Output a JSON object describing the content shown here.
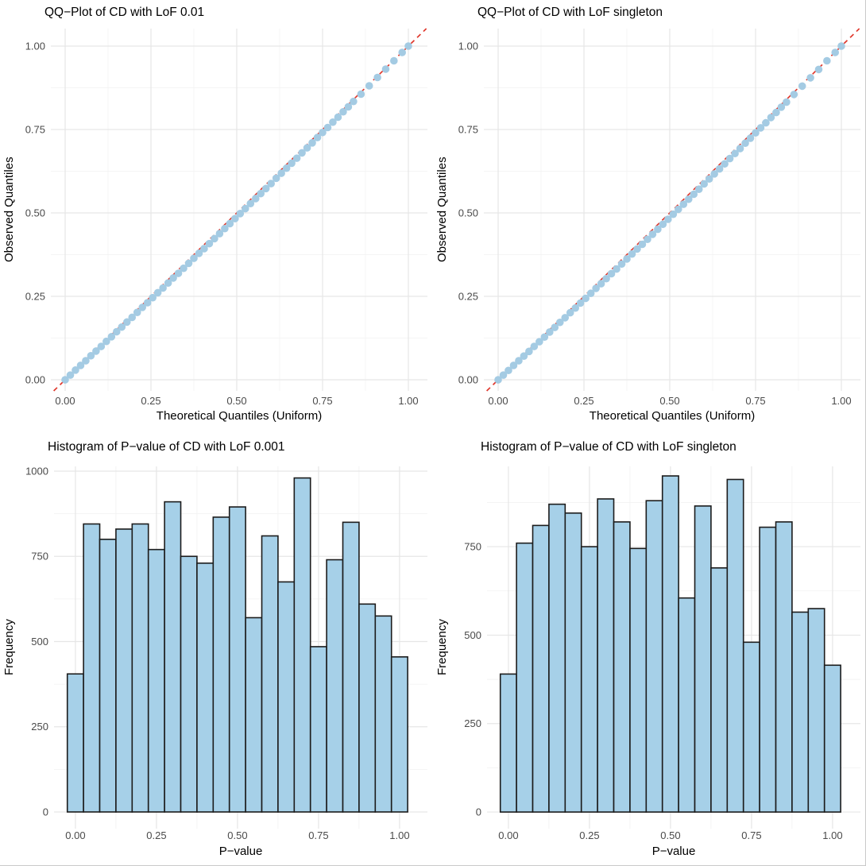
{
  "figure": {
    "background": "#ffffff",
    "edge_border": "#c9c9c9"
  },
  "palette": {
    "point_fill": "#A4CBE3",
    "bar_fill": "#A6D0E8",
    "bar_stroke": "#1C1C1C",
    "ref_line": "#E0372C",
    "grid_major": "#E6E6E6",
    "grid_minor": "#F2F2F2",
    "tick_text": "#4A4A4A",
    "title_text": "#000000"
  },
  "chart_data": [
    {
      "type": "scatter",
      "title": "QQ−Plot of CD with LoF 0.01",
      "xlabel": "Theoretical Quantiles (Uniform)",
      "ylabel": "Observed Quantiles",
      "grid": true,
      "legend": "none",
      "xlim": [
        -0.0417,
        1.0556
      ],
      "ylim": [
        -0.0333,
        1.0524
      ],
      "xtick_values": [
        0,
        0.25,
        0.5,
        0.75,
        1
      ],
      "xticks": [
        "0.00",
        "0.25",
        "0.50",
        "0.75",
        "1.00"
      ],
      "ytick_values": [
        0,
        0.25,
        0.5,
        0.75,
        1
      ],
      "yticks": [
        "0.00",
        "0.25",
        "0.50",
        "0.75",
        "1.00"
      ],
      "reference_line": {
        "type": "identity",
        "style": "dashed"
      },
      "points": [
        [
          0.0,
          0.0
        ],
        [
          0.015,
          0.014
        ],
        [
          0.03,
          0.029
        ],
        [
          0.045,
          0.043
        ],
        [
          0.06,
          0.057
        ],
        [
          0.075,
          0.072
        ],
        [
          0.09,
          0.086
        ],
        [
          0.105,
          0.1
        ],
        [
          0.12,
          0.115
        ],
        [
          0.135,
          0.129
        ],
        [
          0.15,
          0.144
        ],
        [
          0.165,
          0.158
        ],
        [
          0.18,
          0.173
        ],
        [
          0.195,
          0.187
        ],
        [
          0.21,
          0.202
        ],
        [
          0.225,
          0.217
        ],
        [
          0.24,
          0.231
        ],
        [
          0.255,
          0.246
        ],
        [
          0.27,
          0.261
        ],
        [
          0.285,
          0.275
        ],
        [
          0.3,
          0.29
        ],
        [
          0.315,
          0.305
        ],
        [
          0.33,
          0.319
        ],
        [
          0.345,
          0.334
        ],
        [
          0.36,
          0.349
        ],
        [
          0.375,
          0.364
        ],
        [
          0.39,
          0.379
        ],
        [
          0.405,
          0.393
        ],
        [
          0.42,
          0.408
        ],
        [
          0.435,
          0.423
        ],
        [
          0.45,
          0.438
        ],
        [
          0.465,
          0.453
        ],
        [
          0.48,
          0.468
        ],
        [
          0.495,
          0.483
        ],
        [
          0.51,
          0.498
        ],
        [
          0.525,
          0.513
        ],
        [
          0.54,
          0.528
        ],
        [
          0.555,
          0.543
        ],
        [
          0.57,
          0.558
        ],
        [
          0.585,
          0.573
        ],
        [
          0.6,
          0.588
        ],
        [
          0.615,
          0.604
        ],
        [
          0.63,
          0.619
        ],
        [
          0.645,
          0.634
        ],
        [
          0.66,
          0.649
        ],
        [
          0.675,
          0.664
        ],
        [
          0.69,
          0.68
        ],
        [
          0.705,
          0.695
        ],
        [
          0.72,
          0.71
        ],
        [
          0.735,
          0.726
        ],
        [
          0.75,
          0.741
        ],
        [
          0.765,
          0.756
        ],
        [
          0.78,
          0.772
        ],
        [
          0.795,
          0.787
        ],
        [
          0.81,
          0.803
        ],
        [
          0.825,
          0.818
        ],
        [
          0.84,
          0.834
        ],
        [
          0.862,
          0.856
        ],
        [
          0.886,
          0.881
        ],
        [
          0.91,
          0.906
        ],
        [
          0.934,
          0.931
        ],
        [
          0.958,
          0.956
        ],
        [
          0.982,
          0.981
        ],
        [
          1.0,
          1.0
        ]
      ]
    },
    {
      "type": "scatter",
      "title": "QQ−Plot of CD with LoF singleton",
      "xlabel": "Theoretical Quantiles (Uniform)",
      "ylabel": "Observed Quantiles",
      "grid": true,
      "legend": "none",
      "xlim": [
        -0.0417,
        1.0556
      ],
      "ylim": [
        -0.0333,
        1.0524
      ],
      "xtick_values": [
        0,
        0.25,
        0.5,
        0.75,
        1
      ],
      "xticks": [
        "0.00",
        "0.25",
        "0.50",
        "0.75",
        "1.00"
      ],
      "ytick_values": [
        0,
        0.25,
        0.5,
        0.75,
        1
      ],
      "yticks": [
        "0.00",
        "0.25",
        "0.50",
        "0.75",
        "1.00"
      ],
      "reference_line": {
        "type": "identity",
        "style": "dashed"
      },
      "points": [
        [
          0.0,
          0.0
        ],
        [
          0.015,
          0.014
        ],
        [
          0.03,
          0.028
        ],
        [
          0.045,
          0.043
        ],
        [
          0.06,
          0.057
        ],
        [
          0.075,
          0.071
        ],
        [
          0.09,
          0.085
        ],
        [
          0.105,
          0.1
        ],
        [
          0.12,
          0.114
        ],
        [
          0.135,
          0.128
        ],
        [
          0.15,
          0.143
        ],
        [
          0.165,
          0.157
        ],
        [
          0.18,
          0.172
        ],
        [
          0.195,
          0.186
        ],
        [
          0.21,
          0.201
        ],
        [
          0.225,
          0.215
        ],
        [
          0.24,
          0.23
        ],
        [
          0.255,
          0.244
        ],
        [
          0.27,
          0.259
        ],
        [
          0.285,
          0.274
        ],
        [
          0.3,
          0.288
        ],
        [
          0.315,
          0.303
        ],
        [
          0.33,
          0.318
        ],
        [
          0.345,
          0.332
        ],
        [
          0.36,
          0.347
        ],
        [
          0.375,
          0.362
        ],
        [
          0.39,
          0.377
        ],
        [
          0.405,
          0.392
        ],
        [
          0.42,
          0.406
        ],
        [
          0.435,
          0.421
        ],
        [
          0.45,
          0.436
        ],
        [
          0.465,
          0.451
        ],
        [
          0.48,
          0.466
        ],
        [
          0.495,
          0.481
        ],
        [
          0.51,
          0.496
        ],
        [
          0.525,
          0.511
        ],
        [
          0.54,
          0.526
        ],
        [
          0.555,
          0.541
        ],
        [
          0.57,
          0.556
        ],
        [
          0.585,
          0.571
        ],
        [
          0.6,
          0.587
        ],
        [
          0.615,
          0.602
        ],
        [
          0.63,
          0.617
        ],
        [
          0.645,
          0.632
        ],
        [
          0.66,
          0.647
        ],
        [
          0.675,
          0.663
        ],
        [
          0.69,
          0.678
        ],
        [
          0.705,
          0.693
        ],
        [
          0.72,
          0.709
        ],
        [
          0.735,
          0.724
        ],
        [
          0.75,
          0.74
        ],
        [
          0.765,
          0.755
        ],
        [
          0.78,
          0.77
        ],
        [
          0.795,
          0.786
        ],
        [
          0.81,
          0.801
        ],
        [
          0.825,
          0.817
        ],
        [
          0.84,
          0.832
        ],
        [
          0.862,
          0.855
        ],
        [
          0.886,
          0.88
        ],
        [
          0.91,
          0.905
        ],
        [
          0.934,
          0.93
        ],
        [
          0.958,
          0.956
        ],
        [
          0.982,
          0.981
        ],
        [
          1.0,
          1.0
        ]
      ]
    },
    {
      "type": "bar",
      "title": "Histogram of P−value of CD with LoF 0.001",
      "xlabel": "P−value",
      "ylabel": "Frequency",
      "grid": true,
      "legend": "none",
      "xlim": [
        -0.066,
        1.086
      ],
      "ylim": [
        -49,
        1014
      ],
      "xtick_values": [
        0,
        0.25,
        0.5,
        0.75,
        1
      ],
      "xticks": [
        "0.00",
        "0.25",
        "0.50",
        "0.75",
        "1.00"
      ],
      "ytick_values": [
        0,
        250,
        500,
        750,
        1000
      ],
      "yticks": [
        "0",
        "250",
        "500",
        "750",
        "1000"
      ],
      "bin_width": 0.05,
      "bin_centers": [
        0,
        0.05,
        0.1,
        0.15,
        0.2,
        0.25,
        0.3,
        0.35,
        0.4,
        0.45,
        0.5,
        0.55,
        0.6,
        0.65,
        0.7,
        0.75,
        0.8,
        0.85,
        0.9,
        0.95,
        1.0
      ],
      "values": [
        405,
        845,
        800,
        830,
        845,
        770,
        910,
        750,
        730,
        865,
        895,
        570,
        810,
        675,
        980,
        485,
        740,
        850,
        610,
        575,
        455
      ]
    },
    {
      "type": "bar",
      "title": "Histogram of P−value of CD with LoF singleton",
      "xlabel": "P−value",
      "ylabel": "Frequency",
      "grid": true,
      "legend": "none",
      "xlim": [
        -0.066,
        1.086
      ],
      "ylim": [
        -47,
        977
      ],
      "xtick_values": [
        0,
        0.25,
        0.5,
        0.75,
        1
      ],
      "xticks": [
        "0.00",
        "0.25",
        "0.50",
        "0.75",
        "1.00"
      ],
      "ytick_values": [
        0,
        250,
        500,
        750
      ],
      "yticks": [
        "0",
        "250",
        "500",
        "750"
      ],
      "bin_width": 0.05,
      "bin_centers": [
        0,
        0.05,
        0.1,
        0.15,
        0.2,
        0.25,
        0.3,
        0.35,
        0.4,
        0.45,
        0.5,
        0.55,
        0.6,
        0.65,
        0.7,
        0.75,
        0.8,
        0.85,
        0.9,
        0.95,
        1.0
      ],
      "values": [
        390,
        760,
        810,
        870,
        845,
        750,
        885,
        820,
        745,
        880,
        950,
        605,
        865,
        690,
        940,
        480,
        805,
        820,
        565,
        575,
        415
      ]
    }
  ]
}
